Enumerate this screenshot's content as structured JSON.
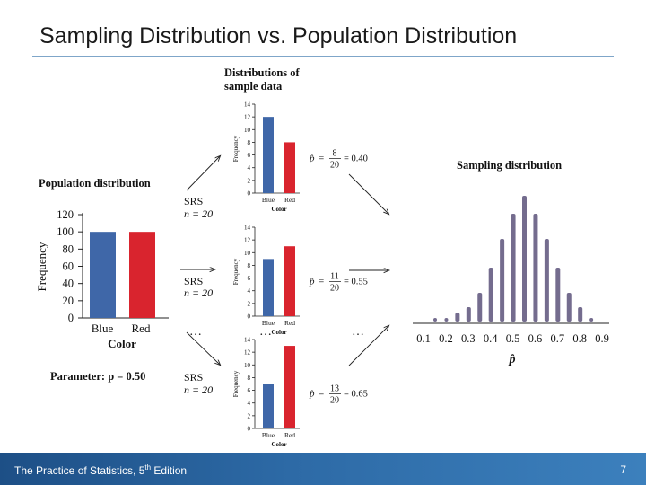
{
  "slide": {
    "title": "Sampling Distribution vs. Population Distribution",
    "footer_main": "The Practice of Statistics, 5",
    "footer_sup": "th",
    "footer_rest": " Edition",
    "page_number": "7"
  },
  "colors": {
    "blue": "#3f67a8",
    "red": "#d9242e",
    "purple": "#746c8e",
    "footer": "#2d6aa6"
  },
  "figure": {
    "population": {
      "title": "Population distribution",
      "ylabel": "Frequency",
      "xlabel": "Color",
      "ticks": [
        "0",
        "20",
        "40",
        "60",
        "80",
        "100",
        "120"
      ],
      "categories": [
        "Blue",
        "Red"
      ],
      "parameter_label": "Parameter: p = 0.50"
    },
    "samples_title_line1": "Distributions of",
    "samples_title_line2": "sample data",
    "srs_label": "SRS",
    "n_label": "n = 20",
    "mini_ticks": [
      "0",
      "2",
      "4",
      "6",
      "8",
      "10",
      "12",
      "14"
    ],
    "mini_ylabel": "Frequency",
    "mini_xlabel": "Color",
    "mini_cats": [
      "Blue",
      "Red"
    ],
    "ellipsis": "…",
    "samples": [
      {
        "blue": 12,
        "red": 8,
        "phat_num": "8",
        "phat_den": "20",
        "phat_val": "= 0.40"
      },
      {
        "blue": 9,
        "red": 11,
        "phat_num": "11",
        "phat_den": "20",
        "phat_val": "= 0.55"
      },
      {
        "blue": 7,
        "red": 13,
        "phat_num": "13",
        "phat_den": "20",
        "phat_val": "= 0.65"
      }
    ],
    "sampling": {
      "title": "Sampling distribution",
      "xlabel": "p̂",
      "ticks": [
        "0.1",
        "0.2",
        "0.3",
        "0.4",
        "0.5",
        "0.6",
        "0.7",
        "0.8",
        "0.9"
      ]
    }
  },
  "chart_data": {
    "type": "bar",
    "title": "Population distribution",
    "categories": [
      "Blue",
      "Red"
    ],
    "values": [
      100,
      100
    ],
    "ylabel": "Frequency",
    "xlabel": "Color",
    "ylim": [
      0,
      120
    ]
  },
  "sampling_data": {
    "x": [
      0.1,
      0.15,
      0.2,
      0.25,
      0.3,
      0.35,
      0.4,
      0.45,
      0.5,
      0.55,
      0.6,
      0.65,
      0.7,
      0.75,
      0.8
    ],
    "y": [
      0.5,
      0.5,
      1.2,
      2.0,
      4.0,
      7.5,
      11.5,
      15.0,
      17.5,
      15.0,
      11.5,
      7.5,
      4.0,
      2.0,
      0.5
    ]
  }
}
